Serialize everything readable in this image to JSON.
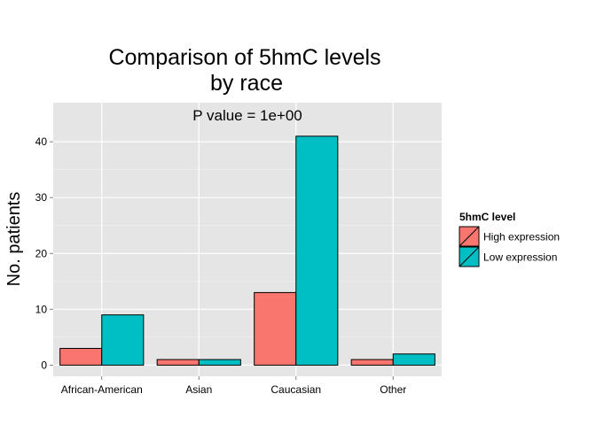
{
  "chart_data": {
    "type": "bar",
    "title_lines": [
      "Comparison of 5hmC levels",
      "by race"
    ],
    "annotation": "P value = 1e+00",
    "xlabel": "",
    "ylabel": "No. patients",
    "categories": [
      "African-American",
      "Asian",
      "Caucasian",
      "Other"
    ],
    "series": [
      {
        "name": "High expression",
        "values": [
          3,
          1,
          13,
          1
        ],
        "color": "#f8766d"
      },
      {
        "name": "Low expression",
        "values": [
          9,
          1,
          41,
          2
        ],
        "color": "#00bfc4"
      }
    ],
    "ylim": [
      -2,
      47
    ],
    "yticks": [
      0,
      10,
      20,
      30,
      40
    ],
    "grid": true,
    "legend": {
      "title": "5hmC level",
      "position": "right"
    },
    "colors": {
      "panel": "#e5e5e5",
      "grid_major": "#ffffff",
      "grid_minor": "#f2f2f2",
      "bar_border": "#000000"
    }
  }
}
